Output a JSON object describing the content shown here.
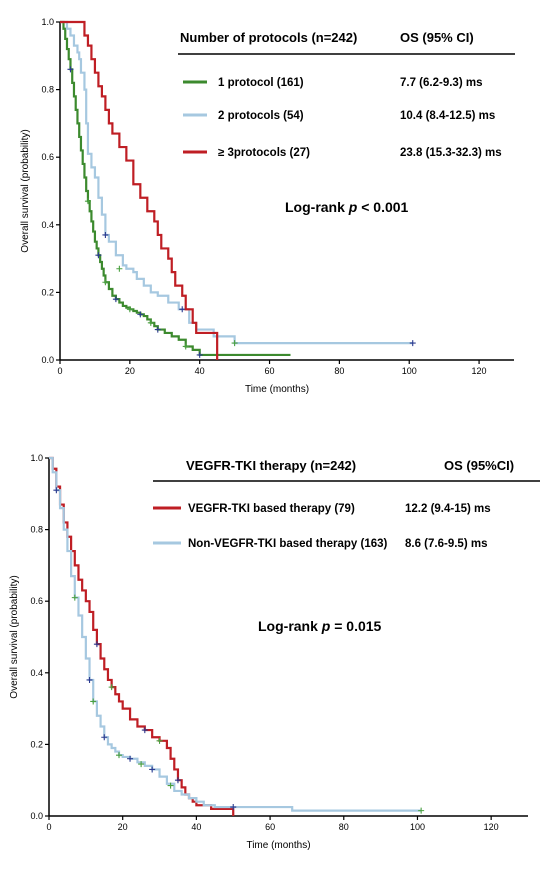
{
  "chart_data": [
    {
      "type": "line",
      "step": true,
      "xlabel": "Time (months)",
      "ylabel": "Overall survival (probability)",
      "xlim": [
        0,
        130
      ],
      "ylim": [
        0,
        1.0
      ],
      "xticks": [
        "0",
        "20",
        "40",
        "60",
        "80",
        "100",
        "120"
      ],
      "yticks": [
        "0.0",
        "0.2",
        "0.4",
        "0.6",
        "0.8",
        "1.0"
      ],
      "grid": false,
      "legend_position": "top-right",
      "legend_header": {
        "left": "Number of protocols (n=242)",
        "right": "OS (95% CI)"
      },
      "annotation": {
        "text": "Log-rank ",
        "italic": "p",
        "rest": " < 0.001"
      },
      "series": [
        {
          "name": "1 protocol (161)",
          "os": "7.7 (6.2-9.3) ms",
          "color": "#3c8a2e",
          "x": [
            0,
            1,
            1.5,
            2,
            2.5,
            3,
            3.5,
            4,
            4.5,
            5,
            5.5,
            6,
            6.5,
            7,
            7.5,
            8,
            8.5,
            9,
            9.5,
            10,
            10.5,
            11,
            11.5,
            12,
            12.5,
            13,
            14,
            15,
            16,
            17,
            18,
            19,
            20,
            21,
            22,
            23,
            24,
            25,
            26,
            27,
            28,
            30,
            32,
            34,
            36,
            38,
            40,
            42,
            66
          ],
          "y": [
            1.0,
            0.98,
            0.95,
            0.92,
            0.89,
            0.86,
            0.82,
            0.78,
            0.74,
            0.7,
            0.66,
            0.62,
            0.58,
            0.54,
            0.5,
            0.47,
            0.44,
            0.41,
            0.38,
            0.35,
            0.33,
            0.31,
            0.29,
            0.27,
            0.25,
            0.23,
            0.21,
            0.19,
            0.18,
            0.17,
            0.16,
            0.155,
            0.15,
            0.145,
            0.14,
            0.135,
            0.13,
            0.12,
            0.11,
            0.1,
            0.09,
            0.08,
            0.07,
            0.06,
            0.04,
            0.03,
            0.015,
            0.015,
            0.015
          ],
          "censor_x": [
            3,
            8,
            11,
            13,
            16,
            20,
            23,
            26,
            28,
            36,
            40
          ],
          "censor_y": [
            0.86,
            0.47,
            0.31,
            0.23,
            0.18,
            0.15,
            0.135,
            0.11,
            0.09,
            0.04,
            0.015
          ]
        },
        {
          "name": "2 protocols (54)",
          "os": "10.4 (8.4-12.5) ms",
          "color": "#a6c8e0",
          "x": [
            0,
            2,
            3,
            4,
            5,
            5.5,
            6,
            7,
            7.5,
            8,
            9,
            10,
            11,
            12,
            13,
            14,
            16,
            18,
            19,
            21,
            22,
            24,
            26,
            28,
            31,
            34,
            37,
            39,
            44,
            50,
            101
          ],
          "y": [
            1.0,
            0.98,
            0.96,
            0.93,
            0.91,
            0.89,
            0.85,
            0.8,
            0.7,
            0.61,
            0.57,
            0.54,
            0.48,
            0.43,
            0.37,
            0.35,
            0.31,
            0.28,
            0.27,
            0.26,
            0.24,
            0.22,
            0.2,
            0.19,
            0.17,
            0.15,
            0.11,
            0.09,
            0.07,
            0.05,
            0.05
          ],
          "censor_x": [
            13,
            17,
            35,
            50,
            101
          ],
          "censor_y": [
            0.37,
            0.27,
            0.15,
            0.05,
            0.05
          ]
        },
        {
          "name": "≥ 3protocols (27)",
          "os": "23.8 (15.3-32.3) ms",
          "color": "#bf1e24",
          "x": [
            0,
            7,
            8,
            9,
            10,
            11,
            12,
            13,
            14,
            15,
            17,
            19,
            21,
            23,
            25,
            27,
            28,
            29,
            31,
            32,
            33,
            35,
            36,
            38,
            39,
            45
          ],
          "y": [
            1.0,
            0.96,
            0.93,
            0.89,
            0.85,
            0.81,
            0.78,
            0.74,
            0.7,
            0.67,
            0.63,
            0.59,
            0.52,
            0.48,
            0.44,
            0.41,
            0.37,
            0.33,
            0.3,
            0.26,
            0.22,
            0.19,
            0.15,
            0.11,
            0.08,
            0.0
          ]
        }
      ]
    },
    {
      "type": "line",
      "step": true,
      "xlabel": "Time (months)",
      "ylabel": "Overall survival (probability)",
      "xlim": [
        0,
        130
      ],
      "ylim": [
        0,
        1.0
      ],
      "xticks": [
        "0",
        "20",
        "40",
        "60",
        "80",
        "100",
        "120"
      ],
      "yticks": [
        "0.0",
        "0.2",
        "0.4",
        "0.6",
        "0.8",
        "1.0"
      ],
      "grid": false,
      "legend_position": "top-right",
      "legend_header": {
        "left": "VEGFR-TKI therapy (n=242)",
        "right": "OS (95%CI)"
      },
      "annotation": {
        "text": "Log-rank ",
        "italic": "p",
        "rest": " = 0.015"
      },
      "series": [
        {
          "name": "VEGFR-TKI based therapy (79)",
          "os": "12.2 (9.4-15) ms",
          "color": "#bf1e24",
          "x": [
            0,
            1,
            2,
            3,
            4,
            5,
            6,
            7,
            8,
            9,
            10,
            11,
            12,
            13,
            14,
            15,
            16,
            17,
            18,
            19,
            20,
            22,
            24,
            26,
            28,
            30,
            32,
            33,
            34,
            35,
            36,
            37,
            38,
            39,
            40,
            44,
            50
          ],
          "y": [
            1.0,
            0.97,
            0.92,
            0.87,
            0.82,
            0.78,
            0.74,
            0.7,
            0.66,
            0.63,
            0.6,
            0.57,
            0.52,
            0.48,
            0.44,
            0.41,
            0.38,
            0.36,
            0.34,
            0.32,
            0.3,
            0.27,
            0.25,
            0.24,
            0.22,
            0.21,
            0.19,
            0.16,
            0.13,
            0.1,
            0.08,
            0.06,
            0.05,
            0.04,
            0.03,
            0.02,
            0.0
          ],
          "censor_x": [
            13,
            17,
            26,
            30,
            35
          ],
          "censor_y": [
            0.48,
            0.36,
            0.24,
            0.21,
            0.1
          ]
        },
        {
          "name": "Non-VEGFR-TKI based therapy (163)",
          "os": "8.6 (7.6-9.5) ms",
          "color": "#a6c8e0",
          "x": [
            0,
            1,
            2,
            3,
            4,
            5,
            6,
            7,
            8,
            9,
            10,
            11,
            12,
            13,
            14,
            15,
            16,
            17,
            18,
            19,
            20,
            22,
            24,
            26,
            28,
            30,
            32,
            34,
            36,
            38,
            40,
            42,
            45,
            50,
            66,
            101
          ],
          "y": [
            1.0,
            0.96,
            0.91,
            0.86,
            0.8,
            0.74,
            0.67,
            0.61,
            0.56,
            0.5,
            0.44,
            0.38,
            0.32,
            0.28,
            0.25,
            0.22,
            0.2,
            0.19,
            0.18,
            0.17,
            0.165,
            0.16,
            0.15,
            0.14,
            0.13,
            0.11,
            0.09,
            0.07,
            0.06,
            0.05,
            0.04,
            0.03,
            0.025,
            0.025,
            0.015,
            0.015
          ],
          "censor_x": [
            2,
            7,
            11,
            12,
            15,
            19,
            22,
            25,
            28,
            33,
            50,
            101
          ],
          "censor_y": [
            0.91,
            0.61,
            0.38,
            0.32,
            0.22,
            0.17,
            0.16,
            0.145,
            0.13,
            0.085,
            0.025,
            0.015
          ]
        }
      ]
    }
  ]
}
